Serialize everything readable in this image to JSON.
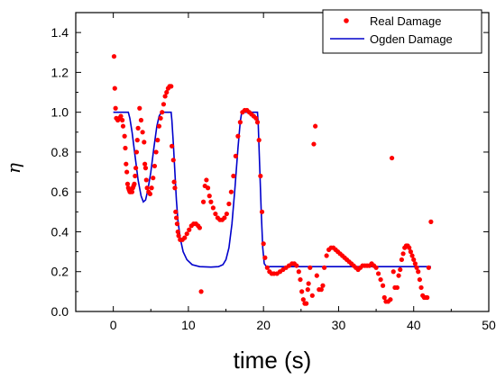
{
  "chart_data": {
    "type": "scatter",
    "xlabel": "time (s)",
    "ylabel": "η",
    "xlim": [
      -5,
      50
    ],
    "ylim": [
      0,
      1.5
    ],
    "xticks": [
      0,
      10,
      20,
      30,
      40,
      50
    ],
    "yticks": [
      0.0,
      0.2,
      0.4,
      0.6,
      0.8,
      1.0,
      1.2,
      1.4
    ],
    "legend_position": "top-right",
    "series": [
      {
        "name": "Real Damage",
        "kind": "scatter",
        "color": "#ff0000",
        "points": [
          [
            0.1,
            1.28
          ],
          [
            0.2,
            1.12
          ],
          [
            0.3,
            1.02
          ],
          [
            0.4,
            0.97
          ],
          [
            0.6,
            0.96
          ],
          [
            0.8,
            0.97
          ],
          [
            1.0,
            0.98
          ],
          [
            1.2,
            0.96
          ],
          [
            1.3,
            0.93
          ],
          [
            1.5,
            0.88
          ],
          [
            1.6,
            0.82
          ],
          [
            1.7,
            0.74
          ],
          [
            1.8,
            0.7
          ],
          [
            1.9,
            0.64
          ],
          [
            2.0,
            0.62
          ],
          [
            2.1,
            0.61
          ],
          [
            2.2,
            0.6
          ],
          [
            2.3,
            0.6
          ],
          [
            2.4,
            0.61
          ],
          [
            2.5,
            0.6
          ],
          [
            2.6,
            0.62
          ],
          [
            2.7,
            0.63
          ],
          [
            2.8,
            0.64
          ],
          [
            2.9,
            0.68
          ],
          [
            3.0,
            0.72
          ],
          [
            3.1,
            0.8
          ],
          [
            3.2,
            0.86
          ],
          [
            3.3,
            0.92
          ],
          [
            3.5,
            1.02
          ],
          [
            3.7,
            0.96
          ],
          [
            3.9,
            0.9
          ],
          [
            4.1,
            0.85
          ],
          [
            4.2,
            0.74
          ],
          [
            4.3,
            0.72
          ],
          [
            4.4,
            0.66
          ],
          [
            4.5,
            0.62
          ],
          [
            4.7,
            0.6
          ],
          [
            4.9,
            0.59
          ],
          [
            5.1,
            0.62
          ],
          [
            5.3,
            0.67
          ],
          [
            5.5,
            0.73
          ],
          [
            5.7,
            0.8
          ],
          [
            5.9,
            0.86
          ],
          [
            6.1,
            0.93
          ],
          [
            6.3,
            0.97
          ],
          [
            6.5,
            1.0
          ],
          [
            6.7,
            1.04
          ],
          [
            6.9,
            1.08
          ],
          [
            7.1,
            1.1
          ],
          [
            7.3,
            1.12
          ],
          [
            7.5,
            1.13
          ],
          [
            7.7,
            1.13
          ],
          [
            7.8,
            0.83
          ],
          [
            8.0,
            0.76
          ],
          [
            8.1,
            0.65
          ],
          [
            8.2,
            0.62
          ],
          [
            8.3,
            0.5
          ],
          [
            8.4,
            0.47
          ],
          [
            8.5,
            0.44
          ],
          [
            8.6,
            0.4
          ],
          [
            8.7,
            0.38
          ],
          [
            8.9,
            0.36
          ],
          [
            9.2,
            0.36
          ],
          [
            9.5,
            0.37
          ],
          [
            9.8,
            0.39
          ],
          [
            10.1,
            0.41
          ],
          [
            10.4,
            0.43
          ],
          [
            10.7,
            0.44
          ],
          [
            11.0,
            0.44
          ],
          [
            11.3,
            0.43
          ],
          [
            11.5,
            0.42
          ],
          [
            11.7,
            0.1
          ],
          [
            12.0,
            0.55
          ],
          [
            12.2,
            0.63
          ],
          [
            12.4,
            0.66
          ],
          [
            12.6,
            0.62
          ],
          [
            12.8,
            0.58
          ],
          [
            13.0,
            0.55
          ],
          [
            13.3,
            0.52
          ],
          [
            13.6,
            0.49
          ],
          [
            13.9,
            0.47
          ],
          [
            14.2,
            0.46
          ],
          [
            14.5,
            0.46
          ],
          [
            14.8,
            0.47
          ],
          [
            15.1,
            0.49
          ],
          [
            15.4,
            0.54
          ],
          [
            15.7,
            0.6
          ],
          [
            16.0,
            0.68
          ],
          [
            16.3,
            0.78
          ],
          [
            16.6,
            0.88
          ],
          [
            16.9,
            0.95
          ],
          [
            17.2,
            1.0
          ],
          [
            17.5,
            1.01
          ],
          [
            17.8,
            1.01
          ],
          [
            18.1,
            1.0
          ],
          [
            18.4,
            0.99
          ],
          [
            18.7,
            0.98
          ],
          [
            19.0,
            0.97
          ],
          [
            19.2,
            0.95
          ],
          [
            19.4,
            0.86
          ],
          [
            19.6,
            0.68
          ],
          [
            19.8,
            0.5
          ],
          [
            20.0,
            0.34
          ],
          [
            20.2,
            0.27
          ],
          [
            20.5,
            0.22
          ],
          [
            20.8,
            0.2
          ],
          [
            21.1,
            0.19
          ],
          [
            21.4,
            0.19
          ],
          [
            21.8,
            0.19
          ],
          [
            22.2,
            0.2
          ],
          [
            22.6,
            0.21
          ],
          [
            23.0,
            0.22
          ],
          [
            23.4,
            0.23
          ],
          [
            23.8,
            0.24
          ],
          [
            24.1,
            0.24
          ],
          [
            24.4,
            0.23
          ],
          [
            24.7,
            0.2
          ],
          [
            24.9,
            0.16
          ],
          [
            25.1,
            0.1
          ],
          [
            25.3,
            0.06
          ],
          [
            25.5,
            0.04
          ],
          [
            25.7,
            0.04
          ],
          [
            25.9,
            0.11
          ],
          [
            26.0,
            0.14
          ],
          [
            26.2,
            0.22
          ],
          [
            26.5,
            0.08
          ],
          [
            26.7,
            0.84
          ],
          [
            26.9,
            0.93
          ],
          [
            27.1,
            0.18
          ],
          [
            27.4,
            0.11
          ],
          [
            27.7,
            0.11
          ],
          [
            27.9,
            0.13
          ],
          [
            28.1,
            0.22
          ],
          [
            28.4,
            0.28
          ],
          [
            28.7,
            0.31
          ],
          [
            29.0,
            0.32
          ],
          [
            29.3,
            0.32
          ],
          [
            29.6,
            0.31
          ],
          [
            29.9,
            0.3
          ],
          [
            30.2,
            0.29
          ],
          [
            30.5,
            0.28
          ],
          [
            30.8,
            0.27
          ],
          [
            31.1,
            0.26
          ],
          [
            31.4,
            0.25
          ],
          [
            31.7,
            0.24
          ],
          [
            32.0,
            0.23
          ],
          [
            32.3,
            0.22
          ],
          [
            32.6,
            0.21
          ],
          [
            32.9,
            0.22
          ],
          [
            33.2,
            0.23
          ],
          [
            33.5,
            0.23
          ],
          [
            33.8,
            0.23
          ],
          [
            34.1,
            0.23
          ],
          [
            34.4,
            0.24
          ],
          [
            34.7,
            0.23
          ],
          [
            35.0,
            0.22
          ],
          [
            35.3,
            0.19
          ],
          [
            35.6,
            0.16
          ],
          [
            35.9,
            0.13
          ],
          [
            36.1,
            0.07
          ],
          [
            36.3,
            0.05
          ],
          [
            36.6,
            0.05
          ],
          [
            36.9,
            0.06
          ],
          [
            37.1,
            0.77
          ],
          [
            37.3,
            0.2
          ],
          [
            37.5,
            0.12
          ],
          [
            37.8,
            0.12
          ],
          [
            38.0,
            0.18
          ],
          [
            38.2,
            0.21
          ],
          [
            38.4,
            0.26
          ],
          [
            38.6,
            0.29
          ],
          [
            38.8,
            0.32
          ],
          [
            39.0,
            0.33
          ],
          [
            39.2,
            0.33
          ],
          [
            39.4,
            0.32
          ],
          [
            39.6,
            0.3
          ],
          [
            39.8,
            0.28
          ],
          [
            40.0,
            0.26
          ],
          [
            40.2,
            0.24
          ],
          [
            40.4,
            0.22
          ],
          [
            40.6,
            0.2
          ],
          [
            40.8,
            0.16
          ],
          [
            41.0,
            0.12
          ],
          [
            41.2,
            0.08
          ],
          [
            41.4,
            0.07
          ],
          [
            41.6,
            0.07
          ],
          [
            41.8,
            0.07
          ],
          [
            42.0,
            0.22
          ],
          [
            42.3,
            0.45
          ]
        ]
      },
      {
        "name": "Ogden Damage",
        "kind": "line",
        "color": "#0000cc",
        "points": [
          [
            0,
            1.0
          ],
          [
            1.9,
            1.0
          ],
          [
            2.0,
            1.0
          ],
          [
            2.2,
            0.97
          ],
          [
            2.5,
            0.9
          ],
          [
            2.9,
            0.78
          ],
          [
            3.3,
            0.66
          ],
          [
            3.7,
            0.58
          ],
          [
            4.0,
            0.55
          ],
          [
            4.3,
            0.56
          ],
          [
            4.6,
            0.61
          ],
          [
            5.0,
            0.7
          ],
          [
            5.4,
            0.82
          ],
          [
            5.8,
            0.93
          ],
          [
            6.1,
            0.98
          ],
          [
            6.4,
            1.0
          ],
          [
            7.7,
            1.0
          ],
          [
            7.8,
            0.96
          ],
          [
            8.0,
            0.84
          ],
          [
            8.2,
            0.7
          ],
          [
            8.4,
            0.56
          ],
          [
            8.6,
            0.46
          ],
          [
            8.9,
            0.37
          ],
          [
            9.3,
            0.3
          ],
          [
            9.8,
            0.26
          ],
          [
            10.5,
            0.235
          ],
          [
            11.5,
            0.225
          ],
          [
            13.0,
            0.223
          ],
          [
            14.0,
            0.225
          ],
          [
            14.6,
            0.235
          ],
          [
            15.0,
            0.26
          ],
          [
            15.4,
            0.32
          ],
          [
            15.8,
            0.44
          ],
          [
            16.2,
            0.62
          ],
          [
            16.6,
            0.82
          ],
          [
            16.9,
            0.95
          ],
          [
            17.1,
            1.0
          ],
          [
            19.2,
            1.0
          ],
          [
            19.3,
            0.94
          ],
          [
            19.5,
            0.72
          ],
          [
            19.7,
            0.5
          ],
          [
            19.9,
            0.32
          ],
          [
            20.1,
            0.24
          ],
          [
            20.4,
            0.225
          ],
          [
            42.3,
            0.225
          ]
        ]
      }
    ]
  }
}
